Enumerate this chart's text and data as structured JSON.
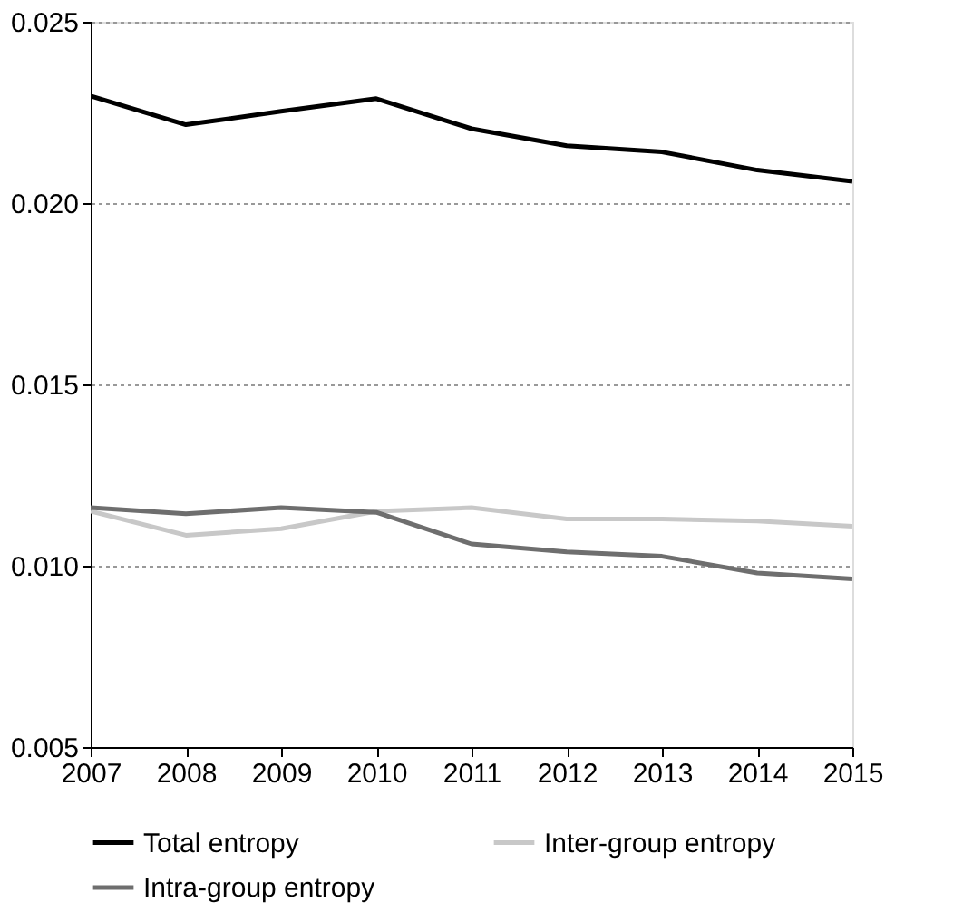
{
  "chart_data": {
    "type": "line",
    "x": [
      2007,
      2008,
      2009,
      2010,
      2011,
      2012,
      2013,
      2014,
      2015
    ],
    "series": [
      {
        "name": "Total entropy",
        "color": "#000000",
        "values": [
          0.02295,
          0.02216,
          0.02253,
          0.02288,
          0.02205,
          0.02158,
          0.02141,
          0.02091,
          0.0206
        ]
      },
      {
        "name": "Inter-group entropy",
        "color": "#c8c8c8",
        "values": [
          0.0115,
          0.01084,
          0.01102,
          0.0115,
          0.0116,
          0.01129,
          0.01129,
          0.01123,
          0.01109
        ]
      },
      {
        "name": "Intra-group entropy",
        "color": "#6e6e6e",
        "values": [
          0.0116,
          0.01143,
          0.0116,
          0.01147,
          0.0106,
          0.01038,
          0.01026,
          0.0098,
          0.00964
        ]
      }
    ],
    "xlim": [
      2007,
      2015
    ],
    "xticks": [
      2007,
      2008,
      2009,
      2010,
      2011,
      2012,
      2013,
      2014,
      2015
    ],
    "ylim": [
      0.005,
      0.025
    ],
    "yticks": [
      {
        "value": 0.005,
        "label": "0.005"
      },
      {
        "value": 0.01,
        "label": "0.010"
      },
      {
        "value": 0.015,
        "label": "0.015"
      },
      {
        "value": 0.02,
        "label": "0.020"
      },
      {
        "value": 0.025,
        "label": "0.025"
      }
    ],
    "grid": "y",
    "legend": "bottom",
    "marker": "none",
    "line_style": "solid"
  }
}
